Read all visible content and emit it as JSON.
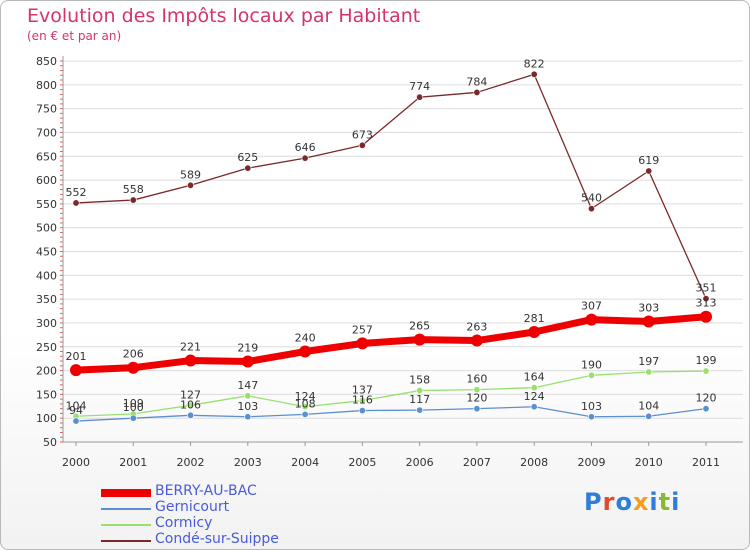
{
  "header": {
    "title": "Evolution des Impôts locaux par Habitant",
    "subtitle": "(en € et par an)"
  },
  "logo": {
    "text": "Proxiti",
    "colors": [
      "#2e7dd6",
      "#e14b2a",
      "#2e7dd6",
      "#f0a020",
      "#2e7dd6",
      "#88b92e",
      "#2e7dd6"
    ]
  },
  "chart_data": {
    "type": "line",
    "title": "Evolution des Impôts locaux par Habitant",
    "subtitle": "(en € et par an)",
    "xlabel": "",
    "ylabel": "",
    "categories": [
      "2000",
      "2001",
      "2002",
      "2003",
      "2004",
      "2005",
      "2006",
      "2007",
      "2008",
      "2009",
      "2010",
      "2011"
    ],
    "ylim": [
      50,
      850
    ],
    "yticks": [
      50,
      100,
      150,
      200,
      250,
      300,
      350,
      400,
      450,
      500,
      550,
      600,
      650,
      700,
      750,
      800,
      850
    ],
    "grid": true,
    "legend_position": "bottom-left",
    "series": [
      {
        "name": "BERRY-AU-BAC",
        "color": "#ee0000",
        "values": [
          201,
          206,
          221,
          219,
          240,
          257,
          265,
          263,
          281,
          307,
          303,
          313
        ]
      },
      {
        "name": "Gernicourt",
        "color": "#5b8fcf",
        "values": [
          94,
          100,
          106,
          103,
          108,
          116,
          117,
          120,
          124,
          103,
          104,
          120
        ]
      },
      {
        "name": "Cormicy",
        "color": "#99e070",
        "values": [
          104,
          109,
          127,
          147,
          124,
          137,
          158,
          160,
          164,
          190,
          197,
          199
        ]
      },
      {
        "name": "Condé-sur-Suippe",
        "color": "#7a2a2a",
        "values": [
          552,
          558,
          589,
          625,
          646,
          673,
          774,
          784,
          822,
          540,
          619,
          351
        ]
      }
    ]
  }
}
